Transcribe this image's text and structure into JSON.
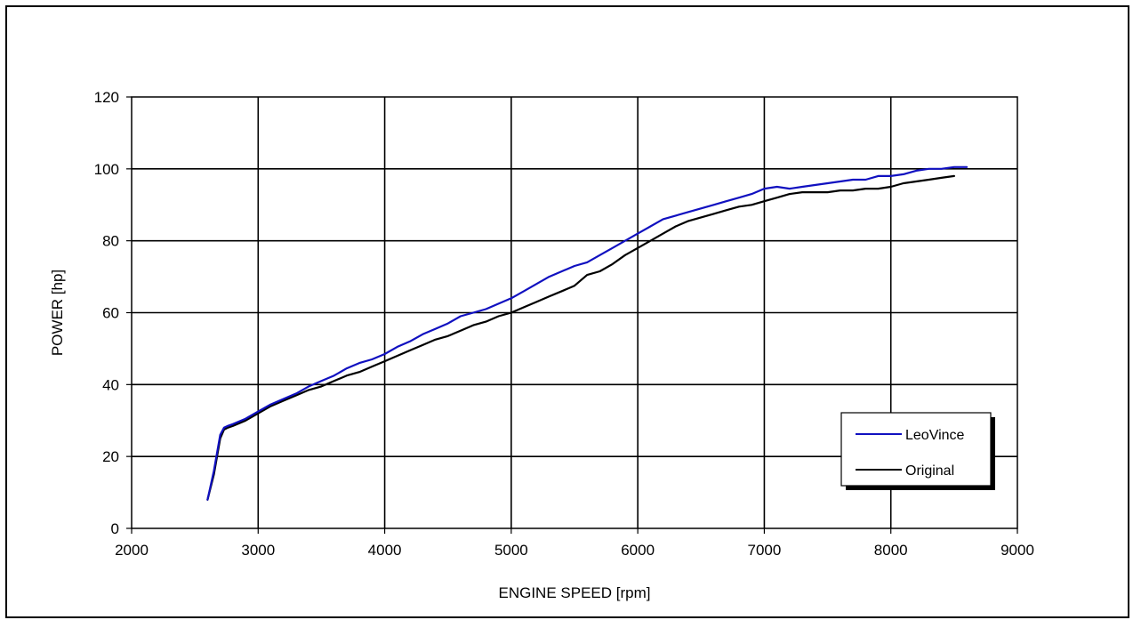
{
  "chart_data": {
    "type": "line",
    "title": "",
    "xlabel": "ENGINE SPEED [rpm]",
    "ylabel": "POWER [hp]",
    "xlim": [
      2000,
      9000
    ],
    "ylim": [
      0,
      120
    ],
    "x_ticks": [
      "2000",
      "3000",
      "4000",
      "5000",
      "6000",
      "7000",
      "8000",
      "9000"
    ],
    "y_ticks": [
      "0",
      "20",
      "40",
      "60",
      "80",
      "100",
      "120"
    ],
    "grid": true,
    "legend_position": "bottom-right",
    "series": [
      {
        "name": "LeoVince",
        "color": "#1010c0",
        "x": [
          2600,
          2650,
          2700,
          2730,
          2760,
          2800,
          2900,
          3000,
          3100,
          3200,
          3300,
          3400,
          3500,
          3600,
          3700,
          3800,
          3900,
          4000,
          4100,
          4200,
          4300,
          4400,
          4500,
          4600,
          4700,
          4800,
          4900,
          5000,
          5100,
          5200,
          5300,
          5400,
          5500,
          5600,
          5700,
          5800,
          5900,
          6000,
          6100,
          6200,
          6300,
          6400,
          6500,
          6600,
          6700,
          6800,
          6900,
          7000,
          7100,
          7200,
          7300,
          7400,
          7500,
          7600,
          7700,
          7800,
          7900,
          8000,
          8100,
          8200,
          8300,
          8400,
          8500,
          8600
        ],
        "values": [
          8,
          16,
          26,
          28,
          28.5,
          29,
          30.5,
          32.5,
          34.5,
          36,
          37.5,
          39.5,
          41,
          42.5,
          44.5,
          46,
          47,
          48.5,
          50.5,
          52,
          54,
          55.5,
          57,
          59,
          60,
          61,
          62.5,
          64,
          66,
          68,
          70,
          71.5,
          73,
          74,
          76,
          78,
          80,
          82,
          84,
          86,
          87,
          88,
          89,
          90,
          91,
          92,
          93,
          94.5,
          95,
          94.5,
          95,
          95.5,
          96,
          96.5,
          97,
          97,
          98,
          98,
          98.5,
          99.5,
          100,
          100,
          100.5,
          100.5
        ]
      },
      {
        "name": "Original",
        "color": "#000000",
        "x": [
          2600,
          2650,
          2700,
          2730,
          2760,
          2800,
          2900,
          3000,
          3100,
          3200,
          3300,
          3400,
          3500,
          3600,
          3700,
          3800,
          3900,
          4000,
          4100,
          4200,
          4300,
          4400,
          4500,
          4600,
          4700,
          4800,
          4900,
          5000,
          5100,
          5200,
          5300,
          5400,
          5500,
          5600,
          5700,
          5800,
          5900,
          6000,
          6100,
          6200,
          6300,
          6400,
          6500,
          6600,
          6700,
          6800,
          6900,
          7000,
          7100,
          7200,
          7300,
          7400,
          7500,
          7600,
          7700,
          7800,
          7900,
          8000,
          8100,
          8200,
          8300,
          8400,
          8500
        ],
        "values": [
          8,
          15,
          25,
          27.5,
          28,
          28.5,
          30,
          32,
          34,
          35.5,
          37,
          38.5,
          39.5,
          41,
          42.5,
          43.5,
          45,
          46.5,
          48,
          49.5,
          51,
          52.5,
          53.5,
          55,
          56.5,
          57.5,
          59,
          60,
          61.5,
          63,
          64.5,
          66,
          67.5,
          70.5,
          71.5,
          73.5,
          76,
          78,
          80,
          82,
          84,
          85.5,
          86.5,
          87.5,
          88.5,
          89.5,
          90,
          91,
          92,
          93,
          93.5,
          93.5,
          93.5,
          94,
          94,
          94.5,
          94.5,
          95,
          96,
          96.5,
          97,
          97.5,
          98
        ]
      }
    ]
  }
}
